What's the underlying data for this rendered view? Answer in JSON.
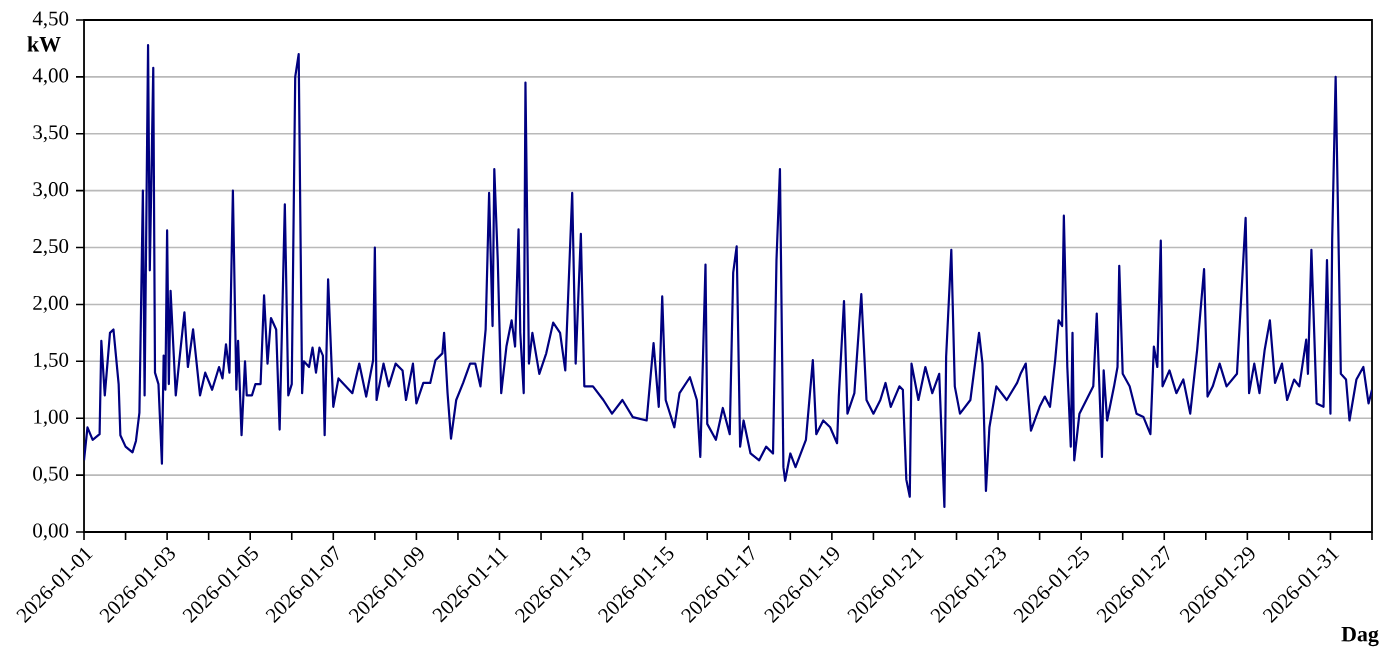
{
  "chart_data": {
    "type": "line",
    "xlabel": "Dag",
    "ylabel": "kW",
    "xlim": [
      "2026-01-01",
      "2026-02-01"
    ],
    "ylim": [
      0,
      4.5
    ],
    "xticks": [
      "2026-01-01",
      {
        "value": "2026-01-02",
        "label": null
      },
      "2026-01-03",
      {
        "value": "2026-01-04",
        "label": null
      },
      "2026-01-05",
      {
        "value": "2026-01-06",
        "label": null
      },
      "2026-01-07",
      {
        "value": "2026-01-08",
        "label": null
      },
      "2026-01-09",
      {
        "value": "2026-01-10",
        "label": null
      },
      "2026-01-11",
      {
        "value": "2026-01-12",
        "label": null
      },
      "2026-01-13",
      {
        "value": "2026-01-14",
        "label": null
      },
      "2026-01-15",
      {
        "value": "2026-01-16",
        "label": null
      },
      "2026-01-17",
      {
        "value": "2026-01-18",
        "label": null
      },
      "2026-01-19",
      {
        "value": "2026-01-20",
        "label": null
      },
      "2026-01-21",
      {
        "value": "2026-01-22",
        "label": null
      },
      "2026-01-23",
      {
        "value": "2026-01-24",
        "label": null
      },
      "2026-01-25",
      {
        "value": "2026-01-26",
        "label": null
      },
      "2026-01-27",
      {
        "value": "2026-01-28",
        "label": null
      },
      "2026-01-29",
      {
        "value": "2026-01-30",
        "label": null
      },
      "2026-01-31",
      {
        "value": "2026-02-01",
        "label": null
      }
    ],
    "yticks": [
      {
        "value": 0,
        "label": "0,00"
      },
      {
        "value": 0.5,
        "label": "0,50"
      },
      {
        "value": 1,
        "label": "1,00"
      },
      {
        "value": 1.5,
        "label": "1,50"
      },
      {
        "value": 2,
        "label": "2,00"
      },
      {
        "value": 2.5,
        "label": "2,50"
      },
      {
        "value": 3,
        "label": "3,00"
      },
      {
        "value": 3.5,
        "label": "3,50"
      },
      {
        "value": 4,
        "label": "4,00"
      },
      {
        "value": 4.5,
        "label": "4,50"
      }
    ],
    "grid": "y",
    "x": [
      "2026-01-01T00:00",
      "2026-01-01T02:00",
      "2026-01-01T05:00",
      "2026-01-01T09:00",
      "2026-01-01T10:00",
      "2026-01-01T12:00",
      "2026-01-01T15:00",
      "2026-01-01T17:00",
      "2026-01-01T20:00",
      "2026-01-01T21:00",
      "2026-01-02T00:00",
      "2026-01-02T04:00",
      "2026-01-02T06:00",
      "2026-01-02T08:00",
      "2026-01-02T10:00",
      "2026-01-02T11:00",
      "2026-01-02T13:00",
      "2026-01-02T14:00",
      "2026-01-02T16:00",
      "2026-01-02T17:00",
      "2026-01-02T19:00",
      "2026-01-02T21:00",
      "2026-01-02T22:00",
      "2026-01-02T23:00",
      "2026-01-03T00:00",
      "2026-01-03T01:00",
      "2026-01-03T02:00",
      "2026-01-03T05:00",
      "2026-01-03T07:00",
      "2026-01-03T10:00",
      "2026-01-03T12:00",
      "2026-01-03T15:00",
      "2026-01-03T19:00",
      "2026-01-03T22:00",
      "2026-01-04T02:00",
      "2026-01-04T06:00",
      "2026-01-04T08:00",
      "2026-01-04T10:00",
      "2026-01-04T12:00",
      "2026-01-04T14:00",
      "2026-01-04T16:00",
      "2026-01-04T17:00",
      "2026-01-04T19:00",
      "2026-01-04T21:00",
      "2026-01-04T22:00",
      "2026-01-05T01:00",
      "2026-01-05T03:00",
      "2026-01-05T06:00",
      "2026-01-05T08:00",
      "2026-01-05T10:00",
      "2026-01-05T12:00",
      "2026-01-05T15:00",
      "2026-01-05T17:00",
      "2026-01-05T20:00",
      "2026-01-05T22:00",
      "2026-01-06T00:00",
      "2026-01-06T02:00",
      "2026-01-06T04:00",
      "2026-01-06T06:00",
      "2026-01-06T07:00",
      "2026-01-06T10:00",
      "2026-01-06T12:00",
      "2026-01-06T14:00",
      "2026-01-06T16:00",
      "2026-01-06T18:00",
      "2026-01-06T19:00",
      "2026-01-06T21:00",
      "2026-01-07T00:00",
      "2026-01-07T03:00",
      "2026-01-07T11:00",
      "2026-01-07T15:00",
      "2026-01-07T19:00",
      "2026-01-07T23:00",
      "2026-01-08T00:00",
      "2026-01-08T01:00",
      "2026-01-08T05:00",
      "2026-01-08T08:00",
      "2026-01-08T12:00",
      "2026-01-08T16:00",
      "2026-01-08T18:00",
      "2026-01-08T22:00",
      "2026-01-09T00:00",
      "2026-01-09T04:00",
      "2026-01-09T08:00",
      "2026-01-09T11:00",
      "2026-01-09T15:00",
      "2026-01-09T16:00",
      "2026-01-09T18:00",
      "2026-01-09T20:00",
      "2026-01-09T23:00",
      "2026-01-10T03:00",
      "2026-01-10T07:00",
      "2026-01-10T10:00",
      "2026-01-10T13:00",
      "2026-01-10T16:00",
      "2026-01-10T18:00",
      "2026-01-10T20:00",
      "2026-01-10T21:00",
      "2026-01-10T23:00",
      "2026-01-11T01:00",
      "2026-01-11T04:00",
      "2026-01-11T07:00",
      "2026-01-11T09:00",
      "2026-01-11T11:00",
      "2026-01-11T12:00",
      "2026-01-11T14:00",
      "2026-01-11T15:00",
      "2026-01-11T17:00",
      "2026-01-11T19:00",
      "2026-01-11T23:00",
      "2026-01-12T03:00",
      "2026-01-12T07:00",
      "2026-01-12T11:00",
      "2026-01-12T14:00",
      "2026-01-12T18:00",
      "2026-01-12T20:00",
      "2026-01-12T23:00",
      "2026-01-13T01:00",
      "2026-01-13T06:00",
      "2026-01-13T12:00",
      "2026-01-13T17:00",
      "2026-01-13T23:00",
      "2026-01-14T05:00",
      "2026-01-14T13:00",
      "2026-01-14T17:00",
      "2026-01-14T20:00",
      "2026-01-14T22:00",
      "2026-01-15T00:00",
      "2026-01-15T05:00",
      "2026-01-15T08:00",
      "2026-01-15T14:00",
      "2026-01-15T18:00",
      "2026-01-15T20:00",
      "2026-01-15T23:00",
      "2026-01-16T00:00",
      "2026-01-16T05:00",
      "2026-01-16T09:00",
      "2026-01-16T13:00",
      "2026-01-16T15:00",
      "2026-01-16T17:00",
      "2026-01-16T19:00",
      "2026-01-16T21:00",
      "2026-01-17T01:00",
      "2026-01-17T06:00",
      "2026-01-17T10:00",
      "2026-01-17T14:00",
      "2026-01-17T16:00",
      "2026-01-17T18:00",
      "2026-01-17T20:00",
      "2026-01-17T21:00",
      "2026-01-18T00:00",
      "2026-01-18T03:00",
      "2026-01-18T09:00",
      "2026-01-18T13:00",
      "2026-01-18T15:00",
      "2026-01-18T19:00",
      "2026-01-18T23:00",
      "2026-01-19T03:00",
      "2026-01-19T04:00",
      "2026-01-19T07:00",
      "2026-01-19T09:00",
      "2026-01-19T13:00",
      "2026-01-19T17:00",
      "2026-01-19T20:00",
      "2026-01-20T00:00",
      "2026-01-20T04:00",
      "2026-01-20T07:00",
      "2026-01-20T10:00",
      "2026-01-20T15:00",
      "2026-01-20T17:00",
      "2026-01-20T19:00",
      "2026-01-20T21:00",
      "2026-01-20T22:00",
      "2026-01-21T02:00",
      "2026-01-21T06:00",
      "2026-01-21T10:00",
      "2026-01-21T14:00",
      "2026-01-21T17:00",
      "2026-01-21T18:00",
      "2026-01-21T21:00",
      "2026-01-21T23:00",
      "2026-01-22T02:00",
      "2026-01-22T08:00",
      "2026-01-22T13:00",
      "2026-01-22T15:00",
      "2026-01-22T17:00",
      "2026-01-22T19:00",
      "2026-01-22T23:00",
      "2026-01-23T05:00",
      "2026-01-23T11:00",
      "2026-01-23T13:00",
      "2026-01-23T16:00",
      "2026-01-23T19:00",
      "2026-01-24T00:00",
      "2026-01-24T03:00",
      "2026-01-24T06:00",
      "2026-01-24T09:00",
      "2026-01-24T11:00",
      "2026-01-24T13:00",
      "2026-01-24T14:00",
      "2026-01-24T16:00",
      "2026-01-24T18:00",
      "2026-01-24T19:00",
      "2026-01-24T20:00",
      "2026-01-24T23:00",
      "2026-01-25T03:00",
      "2026-01-25T07:00",
      "2026-01-25T09:00",
      "2026-01-25T12:00",
      "2026-01-25T13:00",
      "2026-01-25T15:00",
      "2026-01-25T19:00",
      "2026-01-25T21:00",
      "2026-01-25T22:00",
      "2026-01-26T00:00",
      "2026-01-26T04:00",
      "2026-01-26T08:00",
      "2026-01-26T12:00",
      "2026-01-26T16:00",
      "2026-01-26T18:00",
      "2026-01-26T20:00",
      "2026-01-26T22:00",
      "2026-01-26T23:00",
      "2026-01-27T03:00",
      "2026-01-27T07:00",
      "2026-01-27T11:00",
      "2026-01-27T15:00",
      "2026-01-27T19:00",
      "2026-01-27T23:00",
      "2026-01-28T01:00",
      "2026-01-28T04:00",
      "2026-01-28T08:00",
      "2026-01-28T12:00",
      "2026-01-28T18:00",
      "2026-01-28T23:00",
      "2026-01-29T01:00",
      "2026-01-29T04:00",
      "2026-01-29T07:00",
      "2026-01-29T10:00",
      "2026-01-29T13:00",
      "2026-01-29T16:00",
      "2026-01-29T20:00",
      "2026-01-29T23:00",
      "2026-01-30T03:00",
      "2026-01-30T06:00",
      "2026-01-30T10:00",
      "2026-01-30T11:00",
      "2026-01-30T13:00",
      "2026-01-30T16:00",
      "2026-01-30T20:00",
      "2026-01-30T22:00",
      "2026-01-31T00:00",
      "2026-01-31T01:00",
      "2026-01-31T03:00",
      "2026-01-31T06:00",
      "2026-01-31T09:00",
      "2026-01-31T11:00",
      "2026-01-31T15:00",
      "2026-01-31T19:00",
      "2026-01-31T22:00",
      "2026-02-01T00:00"
    ],
    "series": [
      {
        "color": "#000080",
        "values": [
          0.63,
          0.92,
          0.81,
          0.86,
          1.68,
          1.2,
          1.75,
          1.78,
          1.3,
          0.85,
          0.75,
          0.7,
          0.8,
          1.05,
          3.0,
          1.2,
          4.28,
          2.3,
          4.08,
          1.4,
          1.3,
          0.6,
          1.55,
          1.25,
          2.65,
          1.3,
          2.12,
          1.2,
          1.5,
          1.93,
          1.45,
          1.78,
          1.2,
          1.4,
          1.25,
          1.45,
          1.35,
          1.65,
          1.4,
          3.0,
          1.25,
          1.68,
          0.85,
          1.5,
          1.2,
          1.2,
          1.3,
          1.3,
          2.08,
          1.48,
          1.88,
          1.78,
          0.9,
          2.88,
          1.2,
          1.3,
          4.0,
          4.2,
          1.22,
          1.5,
          1.45,
          1.62,
          1.4,
          1.62,
          1.55,
          0.85,
          2.22,
          1.1,
          1.35,
          1.22,
          1.48,
          1.19,
          1.51,
          2.5,
          1.16,
          1.48,
          1.28,
          1.48,
          1.42,
          1.16,
          1.48,
          1.13,
          1.31,
          1.31,
          1.51,
          1.57,
          1.75,
          1.22,
          0.82,
          1.16,
          1.31,
          1.48,
          1.48,
          1.28,
          1.78,
          2.98,
          1.81,
          3.19,
          2.39,
          1.22,
          1.63,
          1.86,
          1.63,
          2.66,
          1.75,
          1.22,
          3.95,
          1.48,
          1.75,
          1.39,
          1.57,
          1.84,
          1.75,
          1.42,
          2.98,
          1.48,
          2.62,
          1.28,
          1.28,
          1.16,
          1.04,
          1.16,
          1.01,
          0.98,
          1.66,
          1.1,
          2.07,
          1.16,
          0.92,
          1.22,
          1.36,
          1.16,
          0.66,
          2.35,
          0.95,
          0.81,
          1.09,
          0.86,
          2.28,
          2.51,
          0.75,
          0.98,
          0.69,
          0.63,
          0.75,
          0.69,
          2.39,
          3.19,
          0.57,
          0.45,
          0.69,
          0.57,
          0.81,
          1.51,
          0.86,
          0.98,
          0.92,
          0.78,
          1.19,
          2.03,
          1.04,
          1.22,
          2.09,
          1.16,
          1.04,
          1.16,
          1.31,
          1.1,
          1.28,
          1.25,
          0.46,
          0.31,
          1.48,
          1.16,
          1.45,
          1.22,
          1.39,
          0.22,
          1.54,
          2.48,
          1.28,
          1.04,
          1.16,
          1.75,
          1.48,
          0.36,
          0.92,
          1.28,
          1.16,
          1.31,
          1.39,
          1.48,
          0.89,
          1.1,
          1.19,
          1.1,
          1.51,
          1.86,
          1.81,
          2.78,
          1.45,
          0.75,
          1.75,
          0.63,
          1.04,
          1.16,
          1.28,
          1.92,
          0.66,
          1.42,
          0.98,
          1.28,
          1.45,
          2.34,
          1.39,
          1.28,
          1.04,
          1.01,
          0.86,
          1.63,
          1.45,
          2.56,
          1.28,
          1.42,
          1.22,
          1.34,
          1.04,
          1.6,
          2.31,
          1.19,
          1.28,
          1.48,
          1.28,
          1.39,
          2.76,
          1.22,
          1.48,
          1.22,
          1.6,
          1.86,
          1.31,
          1.48,
          1.16,
          1.34,
          1.28,
          1.69,
          1.39,
          2.48,
          1.13,
          1.1,
          2.39,
          1.04,
          2.57,
          4.0,
          1.39,
          1.34,
          0.98,
          1.34,
          1.45,
          1.13,
          1.25
        ]
      }
    ]
  }
}
